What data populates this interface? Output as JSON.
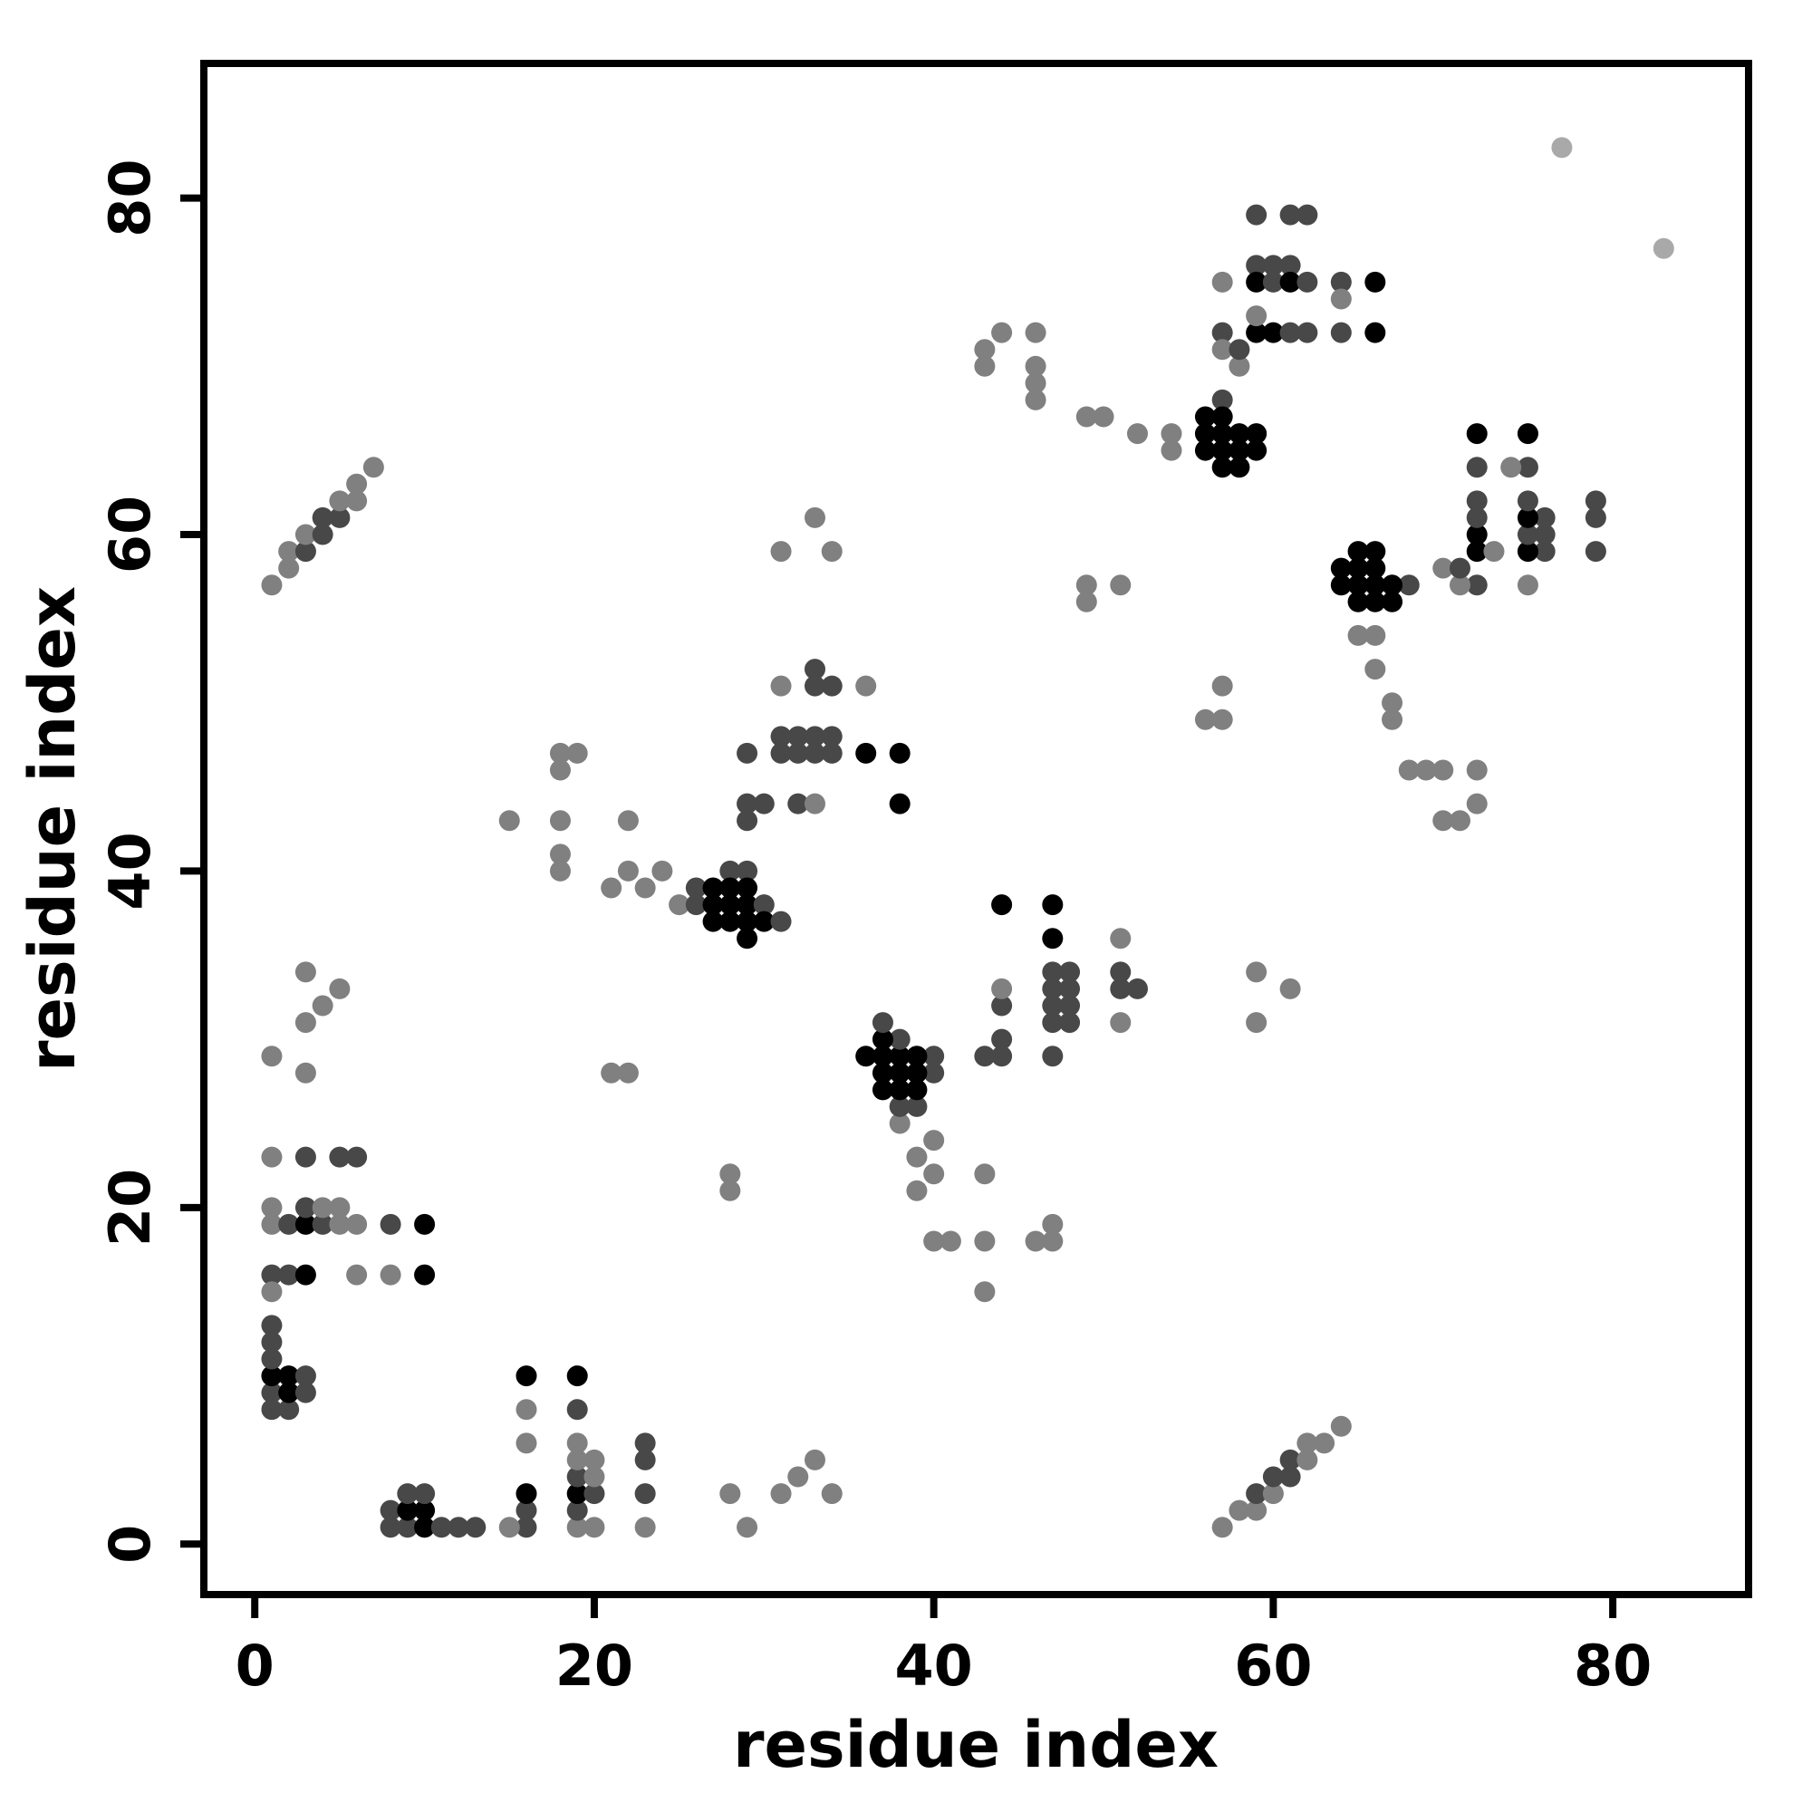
{
  "chart_data": {
    "type": "scatter",
    "title": "",
    "xlabel": "residue index",
    "ylabel": "residue index",
    "xlim": [
      -3,
      88
    ],
    "ylim": [
      -3,
      88
    ],
    "xticks": [
      0,
      20,
      40,
      60,
      80
    ],
    "yticks": [
      0,
      20,
      40,
      60,
      80
    ],
    "grid": false,
    "legend": "none",
    "marker": "circle",
    "symmetric": true,
    "shade_palette": [
      "#a9a9a9",
      "#808080",
      "#484848",
      "#000000"
    ],
    "points_format": [
      "residue_i",
      "residue_j",
      "shade_index"
    ],
    "points": [
      [
        1,
        57,
        1
      ],
      [
        2,
        58,
        1
      ],
      [
        2,
        59,
        1
      ],
      [
        3,
        59,
        2
      ],
      [
        3,
        60,
        1
      ],
      [
        4,
        60,
        2
      ],
      [
        4,
        61,
        2
      ],
      [
        5,
        61,
        2
      ],
      [
        5,
        62,
        1
      ],
      [
        6,
        62,
        1
      ],
      [
        6,
        63,
        1
      ],
      [
        7,
        64,
        1
      ],
      [
        1,
        16,
        2
      ],
      [
        2,
        16,
        2
      ],
      [
        3,
        16,
        3
      ],
      [
        6,
        16,
        1
      ],
      [
        8,
        16,
        1
      ],
      [
        10,
        16,
        3
      ],
      [
        1,
        19,
        1
      ],
      [
        2,
        19,
        2
      ],
      [
        3,
        19,
        3
      ],
      [
        4,
        19,
        2
      ],
      [
        5,
        19,
        1
      ],
      [
        6,
        19,
        1
      ],
      [
        8,
        19,
        2
      ],
      [
        10,
        19,
        3
      ],
      [
        1,
        20,
        1
      ],
      [
        3,
        20,
        2
      ],
      [
        4,
        20,
        1
      ],
      [
        5,
        20,
        1
      ],
      [
        1,
        23,
        1
      ],
      [
        3,
        23,
        2
      ],
      [
        5,
        23,
        2
      ],
      [
        6,
        23,
        2
      ],
      [
        1,
        8,
        2
      ],
      [
        1,
        9,
        2
      ],
      [
        1,
        10,
        3
      ],
      [
        1,
        11,
        2
      ],
      [
        1,
        12,
        2
      ],
      [
        1,
        13,
        2
      ],
      [
        1,
        15,
        1
      ],
      [
        2,
        8,
        2
      ],
      [
        2,
        9,
        3
      ],
      [
        2,
        10,
        3
      ],
      [
        3,
        9,
        2
      ],
      [
        3,
        10,
        2
      ],
      [
        1,
        29,
        1
      ],
      [
        3,
        28,
        1
      ],
      [
        3,
        31,
        1
      ],
      [
        4,
        32,
        1
      ],
      [
        5,
        33,
        1
      ],
      [
        3,
        34,
        1
      ],
      [
        21,
        28,
        1
      ],
      [
        22,
        28,
        1
      ],
      [
        15,
        43,
        1
      ],
      [
        18,
        40,
        1
      ],
      [
        18,
        41,
        1
      ],
      [
        18,
        43,
        1
      ],
      [
        18,
        46,
        1
      ],
      [
        18,
        47,
        1
      ],
      [
        19,
        47,
        1
      ],
      [
        21,
        39,
        1
      ],
      [
        22,
        40,
        1
      ],
      [
        23,
        39,
        1
      ],
      [
        22,
        43,
        1
      ],
      [
        24,
        40,
        1
      ],
      [
        28,
        40,
        2
      ],
      [
        29,
        40,
        2
      ],
      [
        26,
        39,
        2
      ],
      [
        27,
        39,
        3
      ],
      [
        28,
        39,
        3
      ],
      [
        29,
        39,
        3
      ],
      [
        25,
        38,
        1
      ],
      [
        26,
        38,
        2
      ],
      [
        27,
        38,
        3
      ],
      [
        28,
        38,
        3
      ],
      [
        29,
        38,
        3
      ],
      [
        30,
        38,
        2
      ],
      [
        27,
        37,
        3
      ],
      [
        28,
        37,
        3
      ],
      [
        29,
        37,
        3
      ],
      [
        30,
        37,
        3
      ],
      [
        31,
        37,
        2
      ],
      [
        29,
        36,
        3
      ],
      [
        33,
        52,
        2
      ],
      [
        31,
        51,
        1
      ],
      [
        33,
        51,
        2
      ],
      [
        34,
        51,
        2
      ],
      [
        36,
        51,
        1
      ],
      [
        31,
        48,
        2
      ],
      [
        32,
        48,
        2
      ],
      [
        33,
        48,
        2
      ],
      [
        34,
        48,
        2
      ],
      [
        29,
        47,
        2
      ],
      [
        31,
        47,
        2
      ],
      [
        32,
        47,
        2
      ],
      [
        33,
        47,
        2
      ],
      [
        34,
        47,
        2
      ],
      [
        36,
        47,
        3
      ],
      [
        38,
        47,
        3
      ],
      [
        29,
        44,
        2
      ],
      [
        30,
        44,
        2
      ],
      [
        32,
        44,
        2
      ],
      [
        33,
        44,
        1
      ],
      [
        38,
        44,
        3
      ],
      [
        29,
        43,
        2
      ],
      [
        31,
        59,
        1
      ],
      [
        33,
        61,
        1
      ],
      [
        34,
        59,
        1
      ],
      [
        49,
        56,
        1
      ],
      [
        49,
        57,
        1
      ],
      [
        51,
        57,
        1
      ],
      [
        43,
        70,
        1
      ],
      [
        43,
        71,
        1
      ],
      [
        46,
        68,
        1
      ],
      [
        46,
        69,
        1
      ],
      [
        46,
        70,
        1
      ],
      [
        46,
        72,
        1
      ],
      [
        49,
        67,
        1
      ],
      [
        50,
        67,
        1
      ],
      [
        52,
        66,
        1
      ],
      [
        54,
        65,
        1
      ],
      [
        54,
        66,
        1
      ],
      [
        59,
        79,
        2
      ],
      [
        61,
        79,
        2
      ],
      [
        62,
        79,
        2
      ],
      [
        59,
        76,
        2
      ],
      [
        60,
        76,
        2
      ],
      [
        61,
        76,
        2
      ],
      [
        57,
        75,
        1
      ],
      [
        59,
        75,
        3
      ],
      [
        60,
        75,
        2
      ],
      [
        61,
        75,
        3
      ],
      [
        62,
        75,
        2
      ],
      [
        64,
        75,
        2
      ],
      [
        66,
        75,
        3
      ],
      [
        57,
        72,
        2
      ],
      [
        59,
        72,
        3
      ],
      [
        60,
        72,
        3
      ],
      [
        61,
        72,
        2
      ],
      [
        62,
        72,
        2
      ],
      [
        64,
        72,
        2
      ],
      [
        66,
        72,
        3
      ],
      [
        57,
        71,
        1
      ],
      [
        57,
        68,
        2
      ],
      [
        58,
        70,
        1
      ],
      [
        58,
        71,
        2
      ],
      [
        59,
        73,
        1
      ],
      [
        64,
        74,
        1
      ],
      [
        56,
        67,
        3
      ],
      [
        57,
        67,
        3
      ],
      [
        56,
        66,
        3
      ],
      [
        57,
        66,
        3
      ],
      [
        58,
        66,
        3
      ],
      [
        59,
        66,
        3
      ],
      [
        56,
        65,
        3
      ],
      [
        57,
        65,
        3
      ],
      [
        58,
        65,
        3
      ],
      [
        59,
        65,
        3
      ],
      [
        57,
        64,
        3
      ],
      [
        58,
        64,
        3
      ],
      [
        44,
        72,
        1
      ],
      [
        77,
        83,
        0
      ]
    ]
  }
}
